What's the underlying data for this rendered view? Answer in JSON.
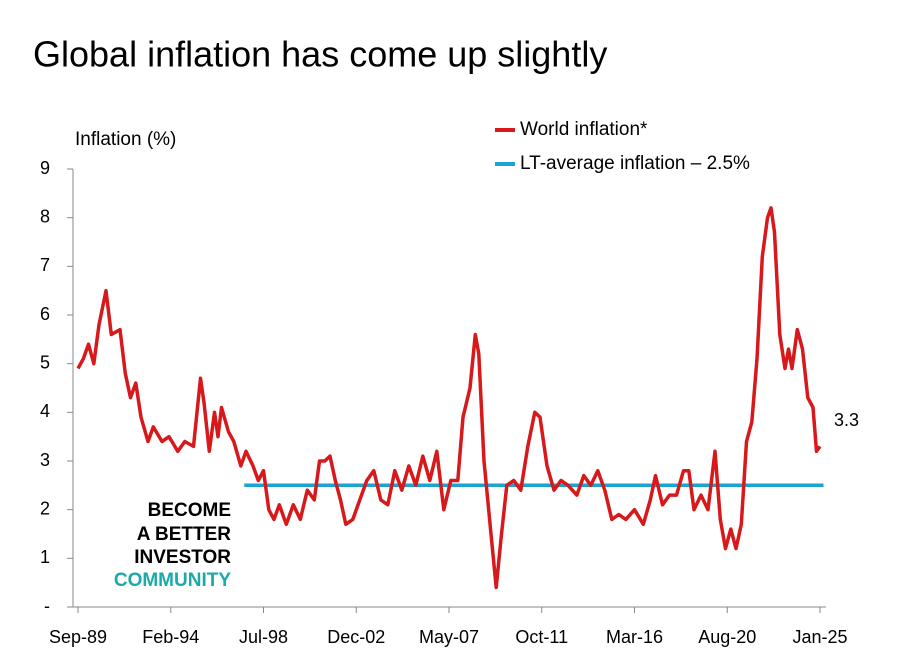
{
  "chart_data": {
    "type": "line",
    "title": "Global inflation has come up slightly",
    "y_label": "Inflation (%)",
    "watermark": [
      "BECOME",
      "A BETTER",
      "INVESTOR",
      "COMMUNITY"
    ],
    "xlim": [
      "1989-09",
      "2025-01"
    ],
    "xticks": [
      {
        "value": "1989-09",
        "label": "Sep-89"
      },
      {
        "value": "1994-02",
        "label": "Feb-94"
      },
      {
        "value": "1998-07",
        "label": "Jul-98"
      },
      {
        "value": "2002-12",
        "label": "Dec-02"
      },
      {
        "value": "2007-05",
        "label": "May-07"
      },
      {
        "value": "2011-10",
        "label": "Oct-11"
      },
      {
        "value": "2016-03",
        "label": "Mar-16"
      },
      {
        "value": "2020-08",
        "label": "Aug-20"
      },
      {
        "value": "2025-01",
        "label": "Jan-25"
      }
    ],
    "ylim": [
      0,
      9
    ],
    "yticks": [
      {
        "value": 0,
        "label": "-"
      },
      1,
      2,
      3,
      4,
      5,
      6,
      7,
      8,
      9
    ],
    "legend": "top-right",
    "series": [
      {
        "name": "World inflation*",
        "color": "#d7191c",
        "x": [
          "1989-09",
          "1989-12",
          "1990-03",
          "1990-06",
          "1990-09",
          "1991-01",
          "1991-04",
          "1991-09",
          "1991-12",
          "1992-03",
          "1992-06",
          "1992-09",
          "1993-01",
          "1993-04",
          "1993-09",
          "1994-01",
          "1994-06",
          "1994-10",
          "1995-03",
          "1995-07",
          "1995-09",
          "1995-12",
          "1996-03",
          "1996-05",
          "1996-07",
          "1996-11",
          "1997-02",
          "1997-06",
          "1997-09",
          "1998-01",
          "1998-04",
          "1998-07",
          "1998-10",
          "1999-01",
          "1999-04",
          "1999-08",
          "1999-12",
          "2000-04",
          "2000-08",
          "2000-12",
          "2001-03",
          "2001-06",
          "2001-09",
          "2001-12",
          "2002-03",
          "2002-06",
          "2002-10",
          "2003-02",
          "2003-06",
          "2003-10",
          "2004-02",
          "2004-06",
          "2004-10",
          "2005-02",
          "2005-06",
          "2005-10",
          "2006-02",
          "2006-06",
          "2006-10",
          "2007-02",
          "2007-06",
          "2007-10",
          "2008-01",
          "2008-05",
          "2008-08",
          "2008-10",
          "2009-01",
          "2009-05",
          "2009-08",
          "2009-11",
          "2010-02",
          "2010-06",
          "2010-10",
          "2011-02",
          "2011-06",
          "2011-09",
          "2012-01",
          "2012-05",
          "2012-09",
          "2013-01",
          "2013-06",
          "2013-10",
          "2014-02",
          "2014-06",
          "2014-10",
          "2015-02",
          "2015-06",
          "2015-10",
          "2016-03",
          "2016-08",
          "2016-12",
          "2017-03",
          "2017-07",
          "2017-11",
          "2018-03",
          "2018-07",
          "2018-10",
          "2019-01",
          "2019-05",
          "2019-09",
          "2020-01",
          "2020-04",
          "2020-07",
          "2020-10",
          "2021-01",
          "2021-04",
          "2021-07",
          "2021-10",
          "2022-01",
          "2022-04",
          "2022-07",
          "2022-09",
          "2022-11",
          "2023-02",
          "2023-05",
          "2023-07",
          "2023-09",
          "2023-12",
          "2024-03",
          "2024-06",
          "2024-09",
          "2024-11",
          "2025-01"
        ],
        "values": [
          4.9,
          5.1,
          5.4,
          5.0,
          5.8,
          6.5,
          5.6,
          5.7,
          4.8,
          4.3,
          4.6,
          3.9,
          3.4,
          3.7,
          3.4,
          3.5,
          3.2,
          3.4,
          3.3,
          4.7,
          4.2,
          3.2,
          4.0,
          3.5,
          4.1,
          3.6,
          3.4,
          2.9,
          3.2,
          2.9,
          2.6,
          2.8,
          2.0,
          1.8,
          2.1,
          1.7,
          2.1,
          1.8,
          2.4,
          2.2,
          3.0,
          3.0,
          3.1,
          2.6,
          2.2,
          1.7,
          1.8,
          2.2,
          2.6,
          2.8,
          2.2,
          2.1,
          2.8,
          2.4,
          2.9,
          2.5,
          3.1,
          2.6,
          3.2,
          2.0,
          2.6,
          2.6,
          3.9,
          4.5,
          5.6,
          5.2,
          3.0,
          1.5,
          0.4,
          1.5,
          2.5,
          2.6,
          2.4,
          3.3,
          4.0,
          3.9,
          2.9,
          2.4,
          2.6,
          2.5,
          2.3,
          2.7,
          2.5,
          2.8,
          2.4,
          1.8,
          1.9,
          1.8,
          2.0,
          1.7,
          2.2,
          2.7,
          2.1,
          2.3,
          2.3,
          2.8,
          2.8,
          2.0,
          2.3,
          2.0,
          3.2,
          1.8,
          1.2,
          1.6,
          1.2,
          1.7,
          3.4,
          3.8,
          5.1,
          7.2,
          8.0,
          8.2,
          7.7,
          5.6,
          4.9,
          5.3,
          4.9,
          5.7,
          5.3,
          4.3,
          4.1,
          3.2,
          3.3
        ]
      },
      {
        "name": "LT-average inflation – 2.5%",
        "color": "#1ba3d1",
        "x": [
          "1997-08",
          "2025-03"
        ],
        "values": [
          2.5,
          2.5
        ]
      }
    ]
  }
}
